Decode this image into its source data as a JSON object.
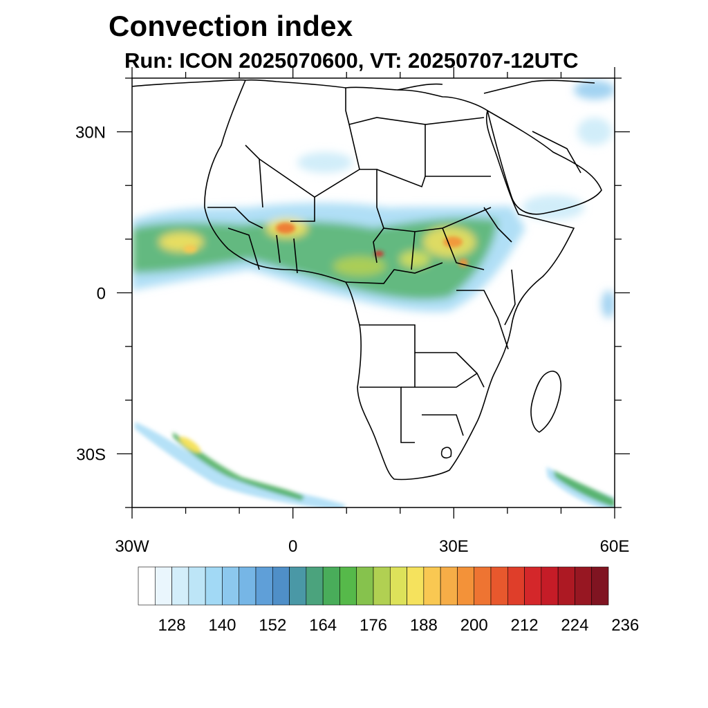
{
  "title": "Convection index",
  "subtitle": "Run: ICON 2025070600,  VT: 20250707-12UTC",
  "map": {
    "lon_range": [
      -30,
      60
    ],
    "lat_range": [
      -40,
      40
    ],
    "lon_ticks": [
      {
        "value": -30,
        "label": "30W"
      },
      {
        "value": 0,
        "label": "0"
      },
      {
        "value": 30,
        "label": "30E"
      },
      {
        "value": 60,
        "label": "60E"
      }
    ],
    "lat_ticks": [
      {
        "value": 30,
        "label": "30N"
      },
      {
        "value": 0,
        "label": "0"
      },
      {
        "value": -30,
        "label": "30S"
      }
    ]
  },
  "colorbar": {
    "colors": [
      "#ffffff",
      "#eaf6fd",
      "#d3eefa",
      "#bde5f7",
      "#a2d9f5",
      "#8cc8ee",
      "#76b6e6",
      "#5f9fd8",
      "#4f8fc8",
      "#4a98a6",
      "#4ba37d",
      "#49ad5a",
      "#56b94a",
      "#86c24d",
      "#b1d052",
      "#dde25a",
      "#f5e25d",
      "#f9c852",
      "#f6ad47",
      "#f39239",
      "#ee7432",
      "#e8582d",
      "#df3e2a",
      "#d4272a",
      "#c51c27",
      "#ad1923",
      "#971722",
      "#801421"
    ],
    "labels": [
      "128",
      "140",
      "152",
      "164",
      "176",
      "188",
      "200",
      "212",
      "224",
      "236"
    ]
  }
}
